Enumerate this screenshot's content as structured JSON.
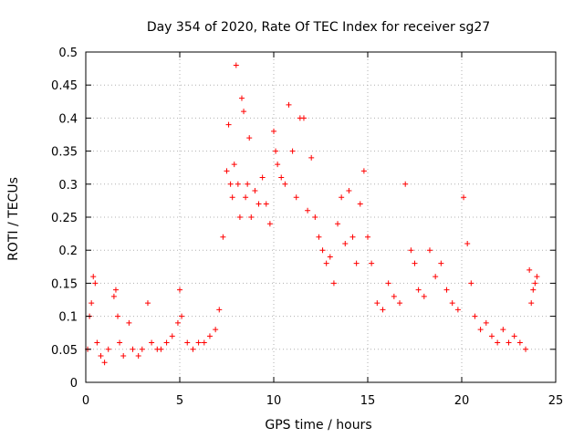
{
  "chart_data": {
    "type": "scatter",
    "title": "Day 354 of 2020, Rate Of TEC Index for receiver sg27",
    "xlabel": "GPS time / hours",
    "ylabel": "ROTI / TECUs",
    "xlim": [
      0,
      25
    ],
    "ylim": [
      0,
      0.5
    ],
    "x_ticks": [
      "0",
      "5",
      "10",
      "15",
      "20",
      "25"
    ],
    "y_ticks": [
      "0",
      "0.05",
      "0.1",
      "0.15",
      "0.2",
      "0.25",
      "0.3",
      "0.35",
      "0.4",
      "0.45",
      "0.5"
    ],
    "grid": true,
    "marker": "+",
    "color": "#ff0000",
    "series": [
      {
        "x": [
          0.1,
          0.2,
          0.3,
          0.4,
          0.5,
          0.6,
          0.8,
          1.0,
          1.2,
          1.5,
          1.6,
          1.7,
          1.8,
          2.0,
          2.3,
          2.5,
          2.8,
          3.0,
          3.3,
          3.5,
          3.8,
          4.0,
          4.3,
          4.6,
          4.9,
          5.0,
          5.1,
          5.4,
          5.7,
          6.0,
          6.3,
          6.6,
          6.9,
          7.1,
          7.3,
          7.5,
          7.6,
          7.7,
          7.8,
          7.9,
          8.0,
          8.1,
          8.2,
          8.3,
          8.4,
          8.5,
          8.6,
          8.7,
          8.8,
          9.0,
          9.2,
          9.4,
          9.6,
          9.8,
          10.0,
          10.1,
          10.2,
          10.4,
          10.6,
          10.8,
          11.0,
          11.2,
          11.4,
          11.6,
          11.8,
          12.0,
          12.2,
          12.4,
          12.6,
          12.8,
          13.0,
          13.2,
          13.4,
          13.6,
          13.8,
          14.0,
          14.2,
          14.4,
          14.6,
          14.8,
          15.0,
          15.2,
          15.5,
          15.8,
          16.1,
          16.4,
          16.7,
          17.0,
          17.3,
          17.5,
          17.7,
          18.0,
          18.3,
          18.6,
          18.9,
          19.2,
          19.5,
          19.8,
          20.1,
          20.3,
          20.5,
          20.7,
          21.0,
          21.3,
          21.6,
          21.9,
          22.2,
          22.5,
          22.8,
          23.1,
          23.4,
          23.6,
          23.7,
          23.8,
          23.9,
          24.0
        ],
        "y": [
          0.05,
          0.1,
          0.12,
          0.16,
          0.15,
          0.06,
          0.04,
          0.03,
          0.05,
          0.13,
          0.14,
          0.1,
          0.06,
          0.04,
          0.09,
          0.05,
          0.04,
          0.05,
          0.12,
          0.06,
          0.05,
          0.05,
          0.06,
          0.07,
          0.09,
          0.14,
          0.1,
          0.06,
          0.05,
          0.06,
          0.06,
          0.07,
          0.08,
          0.11,
          0.22,
          0.32,
          0.39,
          0.3,
          0.28,
          0.33,
          0.48,
          0.3,
          0.25,
          0.43,
          0.41,
          0.28,
          0.3,
          0.37,
          0.25,
          0.29,
          0.27,
          0.31,
          0.27,
          0.24,
          0.38,
          0.35,
          0.33,
          0.31,
          0.3,
          0.42,
          0.35,
          0.28,
          0.4,
          0.4,
          0.26,
          0.34,
          0.25,
          0.22,
          0.2,
          0.18,
          0.19,
          0.15,
          0.24,
          0.28,
          0.21,
          0.29,
          0.22,
          0.18,
          0.27,
          0.32,
          0.22,
          0.18,
          0.12,
          0.11,
          0.15,
          0.13,
          0.12,
          0.3,
          0.2,
          0.18,
          0.14,
          0.13,
          0.2,
          0.16,
          0.18,
          0.14,
          0.12,
          0.11,
          0.28,
          0.21,
          0.15,
          0.1,
          0.08,
          0.09,
          0.07,
          0.06,
          0.08,
          0.06,
          0.07,
          0.06,
          0.05,
          0.17,
          0.12,
          0.14,
          0.15,
          0.16
        ]
      }
    ]
  }
}
